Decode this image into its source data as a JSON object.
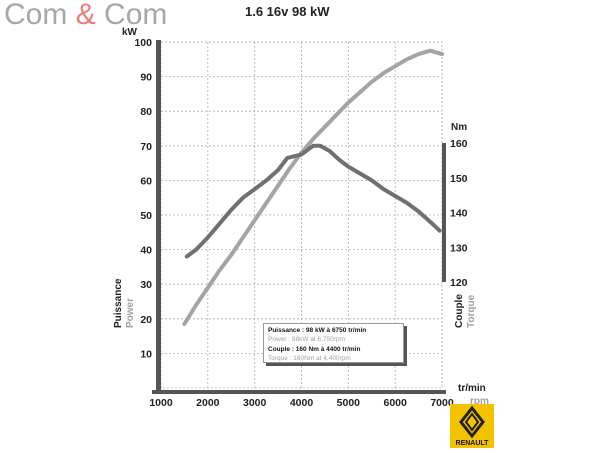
{
  "header": {
    "logo_left": "Com",
    "logo_amp": "&",
    "logo_right": "Com",
    "title": "1.6 16v 98 kW"
  },
  "legend": {
    "power_fr": "Puissance : 98 kW à 6750 tr/min",
    "power_en": "Power : 98kW at 6,750rpm",
    "torque_fr": "Couple : 160 Nm à 4400 tr/min",
    "torque_en": "Torque : 160Nm at 4,400rpm"
  },
  "brand": {
    "name": "RENAULT",
    "color": "#f3c300"
  },
  "colors": {
    "power": "#a4a4a4",
    "torque": "#707070",
    "grid": "#b0b0b0",
    "axis": "#555555"
  },
  "chart_data": {
    "type": "line",
    "title": "1.6 16v 98 kW",
    "x_unit_fr": "tr/min",
    "x_unit_en": "rpm",
    "xlim": [
      1000,
      7000
    ],
    "x_ticks": [
      1000,
      2000,
      3000,
      4000,
      5000,
      6000,
      7000
    ],
    "y_left": {
      "unit": "kW",
      "label_fr": "Puissance",
      "label_en": "Power",
      "range": [
        0,
        100
      ],
      "ticks": [
        10,
        20,
        30,
        40,
        50,
        60,
        70,
        80,
        90,
        100
      ]
    },
    "y_right": {
      "unit": "Nm",
      "label_fr": "Couple",
      "label_en": "Torque",
      "range": [
        120,
        160
      ],
      "ticks": [
        120,
        130,
        140,
        150,
        160
      ]
    },
    "grid": true,
    "series": [
      {
        "name": "Puissance",
        "axis": "left",
        "x": [
          1500,
          1750,
          2000,
          2250,
          2500,
          2750,
          3000,
          3250,
          3500,
          3750,
          4000,
          4250,
          4500,
          4750,
          5000,
          5250,
          5500,
          5750,
          6000,
          6250,
          6500,
          6750,
          7000
        ],
        "y": [
          18.5,
          24,
          29,
          34,
          38.5,
          43.5,
          48.5,
          53.5,
          58.5,
          63.5,
          68,
          72,
          75.5,
          79,
          82.5,
          85.5,
          88.5,
          91,
          93,
          95,
          96.5,
          97.5,
          96.5
        ]
      },
      {
        "name": "Couple",
        "axis": "left",
        "x": [
          1550,
          1750,
          2000,
          2250,
          2500,
          2750,
          3000,
          3250,
          3500,
          3700,
          4000,
          4250,
          4400,
          4600,
          4800,
          5000,
          5250,
          5500,
          5750,
          6000,
          6250,
          6500,
          6750,
          6950
        ],
        "y": [
          38,
          40,
          43.5,
          47.5,
          51.5,
          55,
          57.5,
          60,
          63,
          66.5,
          67.5,
          70,
          70,
          68.5,
          66,
          64,
          62,
          60,
          57.5,
          55.5,
          53.5,
          51,
          48,
          45.5
        ]
      }
    ]
  }
}
